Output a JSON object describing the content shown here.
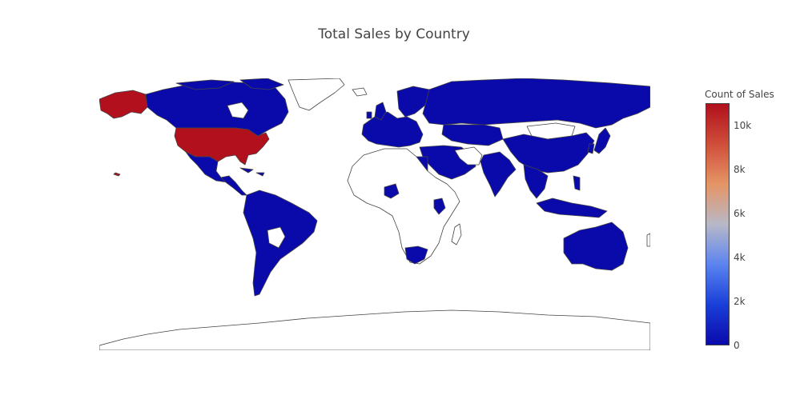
{
  "title": "Total Sales by Country",
  "colorbar": {
    "title": "Count of Sales",
    "min": 0,
    "max": 11000,
    "ticks": [
      {
        "value": 0,
        "label": "0"
      },
      {
        "value": 2000,
        "label": "2k"
      },
      {
        "value": 4000,
        "label": "4k"
      },
      {
        "value": 6000,
        "label": "6k"
      },
      {
        "value": 8000,
        "label": "8k"
      },
      {
        "value": 10000,
        "label": "10k"
      }
    ],
    "colorscale": [
      "#0a0aaa",
      "#1a3fd8",
      "#5b84f0",
      "#b8b8c8",
      "#e59565",
      "#cf4e3a",
      "#b1101c"
    ]
  },
  "chart_data": {
    "type": "choropleth",
    "title": "Total Sales by Country",
    "colorbar_title": "Count of Sales",
    "range": [
      0,
      11000
    ],
    "highlight": {
      "country": "United States",
      "level": "max"
    },
    "colors": {
      "high": "#b1101c",
      "low": "#0a0aaa",
      "no_data": "#ffffff",
      "border": "#444444"
    }
  }
}
